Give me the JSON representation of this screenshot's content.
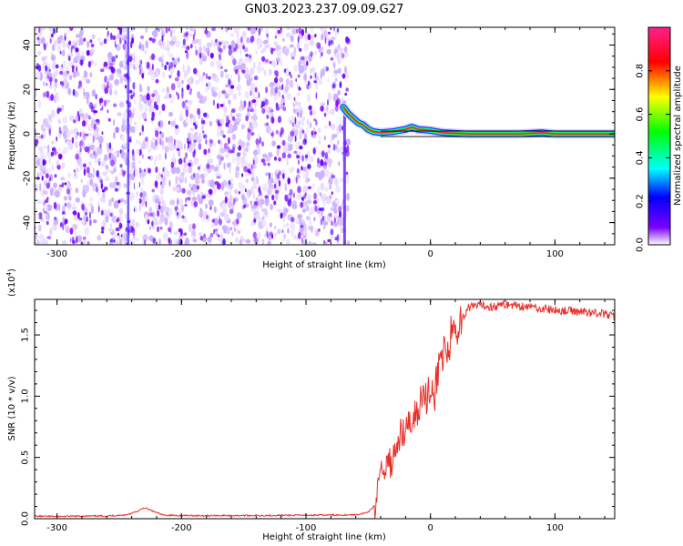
{
  "title": "GN03.2023.237.09.09.G27",
  "chart_data": [
    {
      "type": "heatmap",
      "name": "spectrogram",
      "xlabel": "Height of straight line (km)",
      "ylabel": "Frequency (Hz)",
      "xlim": [
        -318,
        148
      ],
      "ylim": [
        -50,
        48
      ],
      "xticks": [
        -300,
        -200,
        -100,
        0,
        100
      ],
      "yticks": [
        -40,
        -20,
        0,
        20,
        40
      ],
      "colorbar": {
        "label": "Normalized spectral amplitude",
        "range": [
          0,
          1
        ],
        "ticks": [
          "0.0",
          "0.2",
          "0.4",
          "0.6",
          "0.8"
        ],
        "tick_values": [
          0.0,
          0.2,
          0.4,
          0.6,
          0.8
        ],
        "colors": [
          "#ffffff",
          "#7a00ff",
          "#0000ff",
          "#00ffff",
          "#00ff00",
          "#ffff00",
          "#ff0000",
          "#ff1f8f"
        ]
      },
      "noise_region_x": [
        -318,
        -66
      ],
      "ridge": {
        "x": [
          -70,
          -66,
          -62,
          -58,
          -54,
          -50,
          -46,
          -40,
          -30,
          -20,
          -15,
          -10,
          0,
          10,
          30,
          50,
          70,
          90,
          100,
          120,
          148
        ],
        "freq": [
          12,
          9,
          7,
          5,
          4,
          2,
          1,
          0.5,
          1,
          2,
          3,
          2,
          1.5,
          0.5,
          0,
          0,
          0,
          0.5,
          0,
          0,
          0
        ]
      },
      "grid": false
    },
    {
      "type": "line",
      "name": "snr",
      "xlabel": "Height of straight line (km)",
      "ylabel": "SNR (10 * v/v)",
      "y_multiplier": "(x10",
      "y_multiplier_exp": "4",
      "y_multiplier_close": ")",
      "xlim": [
        -318,
        148
      ],
      "ylim": [
        0,
        17900
      ],
      "xticks": [
        -300,
        -200,
        -100,
        0,
        100
      ],
      "yticks": [
        0,
        5000,
        10000,
        15000
      ],
      "ytick_labels": [
        "0.0",
        "0.5",
        "1.0",
        "1.5"
      ],
      "color": "#e8302a",
      "grid": false,
      "series": [
        {
          "x": [
            -318,
            -300,
            -280,
            -260,
            -245,
            -235,
            -230,
            -225,
            -215,
            -200,
            -150,
            -100,
            -60,
            -50,
            -45,
            -43,
            -41,
            -40,
            -38,
            -35,
            -30,
            -25,
            -20,
            -15,
            -10,
            -5,
            0,
            3,
            5,
            8,
            10,
            15,
            20,
            25,
            30,
            40,
            50,
            60,
            80,
            100,
            120,
            135,
            148
          ],
          "y": [
            200,
            180,
            210,
            220,
            300,
            600,
            900,
            700,
            300,
            250,
            260,
            280,
            320,
            500,
            1100,
            2200,
            3700,
            5000,
            4000,
            4600,
            5300,
            6200,
            7300,
            8200,
            9200,
            10000,
            10800,
            9800,
            11500,
            12700,
            13200,
            14500,
            15500,
            16200,
            17200,
            17400,
            17300,
            17500,
            17300,
            17000,
            16900,
            16800,
            16500
          ]
        }
      ]
    }
  ]
}
